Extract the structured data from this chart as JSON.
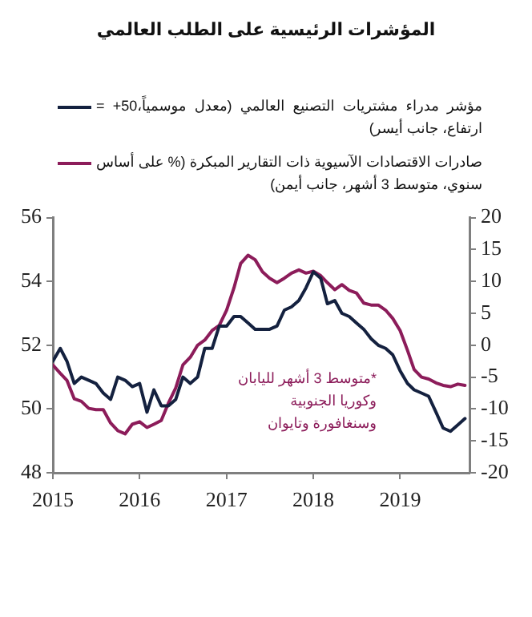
{
  "chart_data": {
    "type": "line",
    "title": "المؤشرات الرئيسية على الطلب العالمي",
    "x": [
      "2015-01",
      "2015-02",
      "2015-03",
      "2015-04",
      "2015-05",
      "2015-06",
      "2015-07",
      "2015-08",
      "2015-09",
      "2015-10",
      "2015-11",
      "2015-12",
      "2016-01",
      "2016-02",
      "2016-03",
      "2016-04",
      "2016-05",
      "2016-06",
      "2016-07",
      "2016-08",
      "2016-09",
      "2016-10",
      "2016-11",
      "2016-12",
      "2017-01",
      "2017-02",
      "2017-03",
      "2017-04",
      "2017-05",
      "2017-06",
      "2017-07",
      "2017-08",
      "2017-09",
      "2017-10",
      "2017-11",
      "2017-12",
      "2018-01",
      "2018-02",
      "2018-03",
      "2018-04",
      "2018-05",
      "2018-06",
      "2018-07",
      "2018-08",
      "2018-09",
      "2018-10",
      "2018-11",
      "2018-12",
      "2019-01",
      "2019-02",
      "2019-03",
      "2019-04",
      "2019-05",
      "2019-06",
      "2019-07",
      "2019-08",
      "2019-09",
      "2019-10"
    ],
    "xlim": [
      "2015-01",
      "2019-10-20"
    ],
    "xticks": [
      "2015",
      "2016",
      "2017",
      "2018",
      "2019"
    ],
    "ylim": [
      48,
      56
    ],
    "yticks": [
      48,
      50,
      52,
      54,
      56
    ],
    "y2lim": [
      -20,
      20
    ],
    "y2ticks": [
      -20,
      -15,
      -10,
      -5,
      0,
      5,
      10,
      15,
      20
    ],
    "legend": "top",
    "series": [
      {
        "name": "مؤشر مدراء مشتريات التصنيع العالمي (معدل موسمياً،50+ = ارتفاع، جانب أيسر)",
        "color": "#14213f",
        "values": [
          51.5,
          51.9,
          51.5,
          50.8,
          51.0,
          50.9,
          50.8,
          50.5,
          50.3,
          51.0,
          50.9,
          50.7,
          50.8,
          49.9,
          50.6,
          50.1,
          50.1,
          50.3,
          51.0,
          50.8,
          51.0,
          51.9,
          51.9,
          52.6,
          52.6,
          52.9,
          52.9,
          52.7,
          52.5,
          52.5,
          52.5,
          52.6,
          53.1,
          53.2,
          53.4,
          53.8,
          54.3,
          54.1,
          53.3,
          53.4,
          53.0,
          52.9,
          52.7,
          52.5,
          52.2,
          52.0,
          51.9,
          51.7,
          51.2,
          50.8,
          50.6,
          50.5,
          50.4,
          49.9,
          49.4,
          49.3,
          49.5,
          49.7
        ]
      },
      {
        "name": "صادرات الاقتصادات الآسيوية ذات التقارير المبكرة (% على أساس سنوي، متوسط 3 أشهر، جانب أيمن)",
        "color": "#8c1c5a",
        "axis": "y2",
        "values": [
          -3.1,
          -4.4,
          -5.5,
          -8.4,
          -8.8,
          -9.9,
          -10.1,
          -10.1,
          -12.2,
          -13.4,
          -13.9,
          -12.4,
          -12.0,
          -12.9,
          -12.4,
          -11.8,
          -9.1,
          -6.7,
          -3.1,
          -1.9,
          0.0,
          0.8,
          2.3,
          3.1,
          5.5,
          9.0,
          12.8,
          14.1,
          13.4,
          11.5,
          10.5,
          9.8,
          10.5,
          11.3,
          11.8,
          11.3,
          11.6,
          10.9,
          9.8,
          8.7,
          9.5,
          8.6,
          8.2,
          6.6,
          6.3,
          6.3,
          5.5,
          4.2,
          2.3,
          -0.8,
          -3.8,
          -5.0,
          -5.3,
          -5.9,
          -6.3,
          -6.5,
          -6.1,
          -6.3
        ]
      }
    ],
    "annotations": [
      "*متوسط 3 أشهر لليابان وكوريا الجنوبية وسنغافورة وتايوان"
    ]
  }
}
